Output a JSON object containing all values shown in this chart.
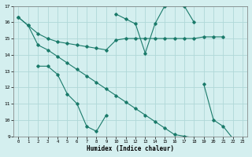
{
  "xlabel": "Humidex (Indice chaleur)",
  "bg_color": "#d4efef",
  "line_color": "#1a7a6a",
  "grid_color": "#b0d8d8",
  "xlim": [
    -0.5,
    23.5
  ],
  "ylim": [
    9,
    17
  ],
  "yticks": [
    9,
    10,
    11,
    12,
    13,
    14,
    15,
    16,
    17
  ],
  "xticks": [
    0,
    1,
    2,
    3,
    4,
    5,
    6,
    7,
    8,
    9,
    10,
    11,
    12,
    13,
    14,
    15,
    16,
    17,
    18,
    19,
    20,
    21,
    22,
    23
  ],
  "line1_x": [
    0,
    1,
    2,
    3,
    4,
    5,
    6,
    7,
    8,
    9,
    10,
    11,
    12,
    13,
    14,
    15,
    16,
    17,
    18,
    19,
    20,
    21
  ],
  "line1_y": [
    16.3,
    15.8,
    15.3,
    15.0,
    14.8,
    14.7,
    14.6,
    14.5,
    14.4,
    14.3,
    14.9,
    15.0,
    15.0,
    15.0,
    15.0,
    15.0,
    15.0,
    15.0,
    15.0,
    15.1,
    15.1,
    15.1
  ],
  "line2_x": [
    10,
    11,
    12,
    13,
    14,
    15,
    16,
    17,
    18
  ],
  "line2_y": [
    16.5,
    16.2,
    15.9,
    14.1,
    15.9,
    17.0,
    17.1,
    17.0,
    16.0
  ],
  "line3a_x": [
    2,
    3,
    4,
    5,
    6,
    7,
    8,
    9
  ],
  "line3a_y": [
    13.3,
    13.3,
    12.8,
    11.6,
    11.0,
    9.6,
    9.3,
    10.3
  ],
  "line3b_x": [
    19,
    20,
    21,
    22,
    23
  ],
  "line3b_y": [
    12.2,
    10.0,
    9.6,
    8.85,
    8.85
  ],
  "line4_x": [
    0,
    1,
    2,
    3,
    4,
    5,
    6,
    7,
    8,
    9,
    10,
    11,
    12,
    13,
    14,
    15,
    16,
    17,
    18,
    19,
    20,
    21,
    22,
    23
  ],
  "line4_y": [
    16.3,
    15.8,
    14.6,
    14.3,
    13.9,
    13.5,
    13.1,
    12.7,
    12.3,
    11.9,
    11.5,
    11.1,
    10.7,
    10.3,
    9.9,
    9.5,
    9.1,
    9.0,
    8.9,
    8.85,
    8.85,
    8.85,
    8.85,
    8.85
  ]
}
